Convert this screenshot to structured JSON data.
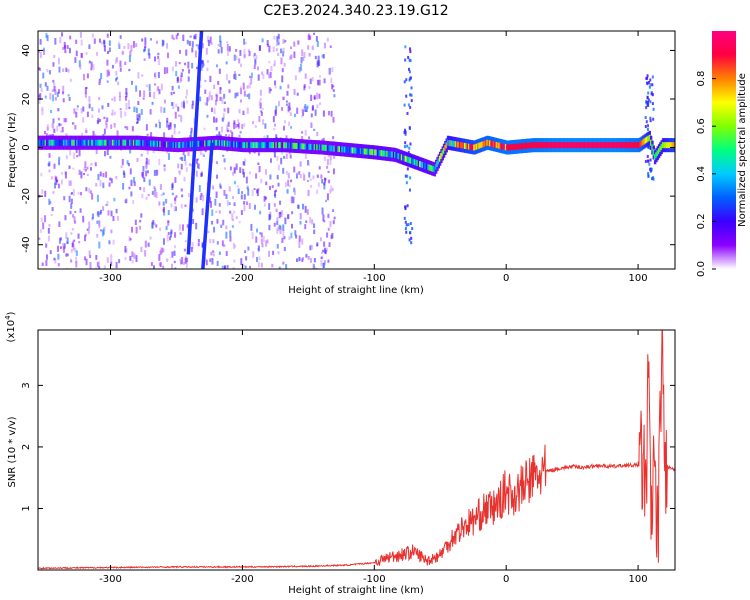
{
  "chart_data": [
    {
      "type": "heatmap",
      "title": "C2E3.2024.340.23.19.G12",
      "xlabel": "Height of straight line (km)",
      "ylabel": "Frequency (Hz)",
      "xlim": [
        -355,
        128
      ],
      "ylim": [
        -50,
        48
      ],
      "xticks": [
        -300,
        -200,
        -100,
        0,
        100
      ],
      "xtick_labels": [
        "-300",
        "-200",
        "-100",
        "0",
        "100"
      ],
      "yticks": [
        -40,
        -20,
        0,
        20,
        40
      ],
      "ytick_labels": [
        "-40",
        "-20",
        "0",
        "20",
        "40"
      ],
      "colorbar": {
        "label": "Normalized spectral amplitude",
        "range": [
          0,
          1
        ],
        "ticks": [
          0.0,
          0.2,
          0.4,
          0.6,
          0.8
        ],
        "tick_labels": [
          "0.0",
          "0.2",
          "0.4",
          "0.6",
          "0.8"
        ],
        "colormap": [
          "#ffffff",
          "#8b00ff",
          "#3a00ff",
          "#0060ff",
          "#00ccff",
          "#00ff80",
          "#80ff00",
          "#ffff00",
          "#ff8000",
          "#ff0040",
          "#ff0080"
        ]
      },
      "ridge": {
        "x": [
          -355,
          -320,
          -280,
          -250,
          -220,
          -200,
          -170,
          -140,
          -120,
          -100,
          -85,
          -75,
          -65,
          -55,
          -45,
          -35,
          -25,
          -15,
          0,
          20,
          40,
          60,
          80,
          100,
          108,
          112,
          118,
          128
        ],
        "y": [
          2,
          2,
          2,
          1,
          2,
          1,
          1,
          0,
          -1,
          -2,
          -3,
          -5,
          -7,
          -9,
          2,
          1,
          0,
          2,
          0,
          1,
          1,
          1,
          1,
          1,
          4,
          -4,
          1,
          1
        ],
        "intensity": [
          0.3,
          0.35,
          0.35,
          0.3,
          0.35,
          0.35,
          0.4,
          0.35,
          0.4,
          0.45,
          0.4,
          0.5,
          0.45,
          0.4,
          0.6,
          0.7,
          0.8,
          0.85,
          0.9,
          0.9,
          0.95,
          0.95,
          0.95,
          0.9,
          0.6,
          0.5,
          0.6,
          0.8
        ]
      },
      "streaks": [
        {
          "x": [
            -241,
            -231
          ],
          "y": [
            -44,
            48
          ]
        },
        {
          "x": [
            -230,
            -223
          ],
          "y": [
            -50,
            2
          ]
        }
      ],
      "bursts": [
        {
          "x": -75,
          "y_range": [
            -40,
            45
          ]
        },
        {
          "x": 108,
          "y_range": [
            -15,
            32
          ]
        }
      ],
      "noise_region": {
        "x_range": [
          -355,
          -130
        ],
        "y_range": [
          -50,
          48
        ]
      }
    },
    {
      "type": "line",
      "xlabel": "Height of straight line (km)",
      "ylabel": "SNR (10 * v/v)",
      "y_multiplier": "(x10^4)",
      "y_multiplier_base": "(x10",
      "y_multiplier_exp": "4",
      "y_multiplier_close": ")",
      "xlim": [
        -355,
        128
      ],
      "ylim": [
        0,
        3.9
      ],
      "xticks": [
        -300,
        -200,
        -100,
        0,
        100
      ],
      "xtick_labels": [
        "-300",
        "-200",
        "-100",
        "0",
        "100"
      ],
      "yticks": [
        1,
        2,
        3
      ],
      "ytick_labels": [
        "1",
        "2",
        "3"
      ],
      "color": "#e8322f",
      "series": [
        {
          "x": [
            -355,
            -300,
            -250,
            -200,
            -150,
            -120,
            -100,
            -90,
            -80,
            -70,
            -60,
            -50,
            -45,
            -40,
            -35,
            -30,
            -25,
            -20,
            -15,
            -10,
            -5,
            0,
            5,
            10,
            15,
            20,
            25,
            30,
            40,
            50,
            60,
            70,
            80,
            90,
            100,
            104,
            106,
            108,
            110,
            112,
            114,
            116,
            118,
            120,
            128
          ],
          "y": [
            0.03,
            0.04,
            0.05,
            0.05,
            0.06,
            0.08,
            0.12,
            0.2,
            0.25,
            0.3,
            0.15,
            0.25,
            0.4,
            0.55,
            0.65,
            0.75,
            0.8,
            0.9,
            1.0,
            1.0,
            1.1,
            1.3,
            1.2,
            1.3,
            1.4,
            1.5,
            1.55,
            1.6,
            1.65,
            1.68,
            1.67,
            1.7,
            1.68,
            1.7,
            1.7,
            1.75,
            1.2,
            3.3,
            0.4,
            2.1,
            0.3,
            1.3,
            3.9,
            1.7,
            1.62
          ]
        }
      ]
    }
  ]
}
